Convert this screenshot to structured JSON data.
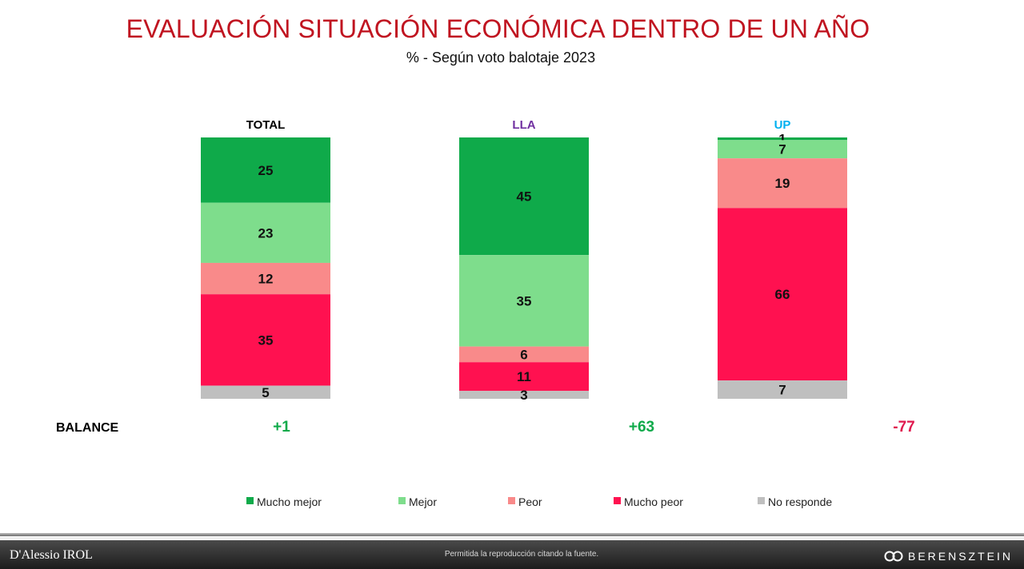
{
  "header": {
    "title": "EVALUACIÓN SITUACIÓN ECONÓMICA DENTRO DE UN AÑO",
    "subtitle": "% - Según voto balotaje 2023"
  },
  "chart_data": {
    "type": "bar",
    "stacked": true,
    "categories": [
      "TOTAL",
      "LLA",
      "UP"
    ],
    "category_colors": [
      "#000000",
      "#7030a0",
      "#00b0f0"
    ],
    "series": [
      {
        "name": "Mucho mejor",
        "color": "#0faa4a",
        "values": [
          25,
          45,
          1
        ]
      },
      {
        "name": "Mejor",
        "color": "#7edd8c",
        "values": [
          23,
          35,
          7
        ]
      },
      {
        "name": "Peor",
        "color": "#f98a8a",
        "values": [
          12,
          6,
          19
        ]
      },
      {
        "name": "Mucho peor",
        "color": "#ff1150",
        "values": [
          35,
          11,
          66
        ]
      },
      {
        "name": "No responde",
        "color": "#bfbfbf",
        "values": [
          5,
          3,
          7
        ]
      }
    ],
    "balance": {
      "label": "BALANCE",
      "values": [
        "+1",
        "+63",
        "-77"
      ],
      "colors": [
        "#0faa4a",
        "#0faa4a",
        "#e0184e"
      ]
    },
    "legend_position": "bottom",
    "ylim": [
      0,
      100
    ]
  },
  "footer": {
    "left_brand": "D'Alessio IROL",
    "note": "Permitida la reproducción citando la fuente.",
    "right_brand": "BERENSZTEIN"
  }
}
